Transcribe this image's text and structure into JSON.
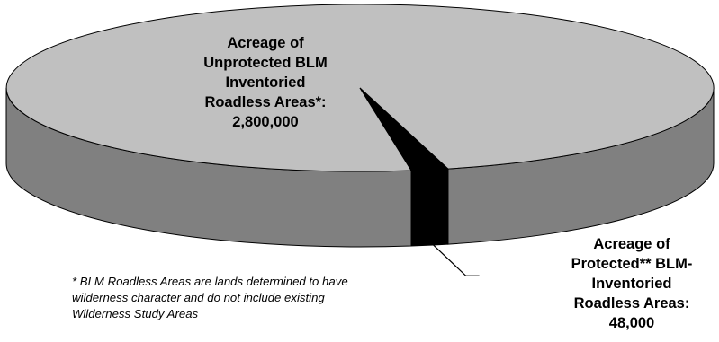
{
  "chart_data": {
    "type": "pie",
    "style": "3d",
    "title": "",
    "categories": [
      "Acreage of Unprotected BLM Inventoried Roadless Areas*: 2,800,000",
      "Acreage of Protected** BLM-Inventoried Roadless Areas: 48,000"
    ],
    "values": [
      2800000,
      48000
    ],
    "colors": {
      "unprotected_top": "#c0c0c0",
      "unprotected_side": "#808080",
      "protected": "#000000",
      "outline": "#000000"
    }
  },
  "labels": {
    "unprotected": [
      "Acreage of",
      "Unprotected BLM",
      "Inventoried",
      "Roadless Areas*:",
      "2,800,000"
    ],
    "protected": [
      "Acreage of",
      "Protected** BLM-",
      "Inventoried",
      "Roadless Areas:",
      "48,000"
    ]
  },
  "footnote": [
    "* BLM Roadless Areas are lands determined to have",
    "wilderness character and do not include existing",
    "Wilderness Study Areas"
  ]
}
